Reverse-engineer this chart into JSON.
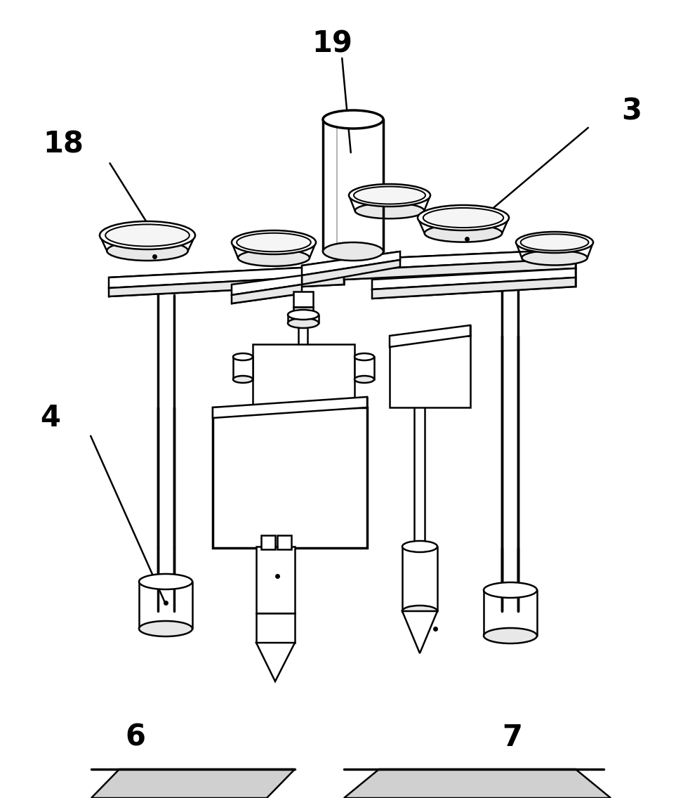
{
  "bg_color": "#ffffff",
  "line_color": "#000000",
  "lw": 1.8,
  "lw2": 2.5,
  "fig_width": 9.63,
  "fig_height": 11.36,
  "label_fontsize": 30,
  "label_fontweight": "bold",
  "gray1": "#e8e8e8",
  "gray2": "#d0d0d0",
  "gray3": "#f5f5f5"
}
